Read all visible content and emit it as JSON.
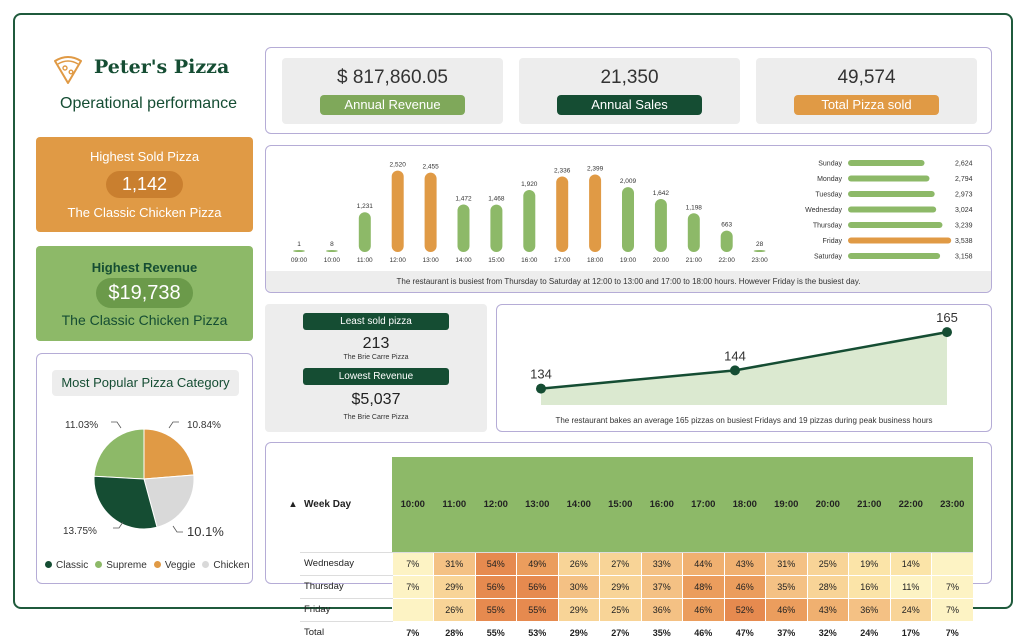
{
  "brand": {
    "name": "Peter's Pizza",
    "subtitle": "Operational performance"
  },
  "highest_sold": {
    "title": "Highest Sold Pizza",
    "value": "1,142",
    "pizza": "The Classic Chicken Pizza"
  },
  "highest_revenue": {
    "title": "Highest Revenue",
    "value": "$19,738",
    "pizza": "The Classic Chicken Pizza"
  },
  "kpis": [
    {
      "value": "$ 817,860.05",
      "label": "Annual Revenue",
      "label_bg": "#7fa85a",
      "label_color": "#ffffff"
    },
    {
      "value": "21,350",
      "label": "Annual Sales",
      "label_bg": "#154d33",
      "label_color": "#ffffff"
    },
    {
      "value": "49,574",
      "label": "Total Pizza sold",
      "label_bg": "#e09a45",
      "label_color": "#ffffff"
    }
  ],
  "colors": {
    "green_dark": "#154d33",
    "green": "#8db968",
    "orange": "#e09a45",
    "grey": "#d9d9d9"
  },
  "hourly_chart": {
    "type": "bar",
    "categories": [
      "09:00",
      "10:00",
      "11:00",
      "12:00",
      "13:00",
      "14:00",
      "15:00",
      "16:00",
      "17:00",
      "18:00",
      "19:00",
      "20:00",
      "21:00",
      "22:00",
      "23:00"
    ],
    "values": [
      1,
      8,
      1231,
      2520,
      2455,
      1472,
      1468,
      1920,
      2336,
      2399,
      2009,
      1642,
      1198,
      663,
      28
    ],
    "value_labels": [
      "1",
      "8",
      "1,231",
      "2,520",
      "2,455",
      "1,472",
      "1,468",
      "1,920",
      "2,336",
      "2,399",
      "2,009",
      "1,642",
      "1,198",
      "663",
      "28"
    ],
    "highlight": [
      false,
      false,
      false,
      true,
      true,
      false,
      false,
      false,
      true,
      true,
      false,
      false,
      false,
      false,
      false
    ],
    "ylim": [
      0,
      2600
    ]
  },
  "weekday_chart": {
    "type": "bar",
    "categories": [
      "Sunday",
      "Monday",
      "Tuesday",
      "Wednesday",
      "Thursday",
      "Friday",
      "Saturday"
    ],
    "values": [
      2624,
      2794,
      2973,
      3024,
      3239,
      3538,
      3158
    ],
    "value_labels": [
      "2,624",
      "2,794",
      "2,973",
      "3,024",
      "3,239",
      "3,538",
      "3,158"
    ],
    "highlight": [
      false,
      false,
      false,
      false,
      false,
      true,
      false
    ],
    "xlim": [
      0,
      3600
    ]
  },
  "bar_note": "The restaurant is busiest from Thursday to Saturday at 12:00 to 13:00 and 17:00 to 18:00 hours. However Friday is the busiest day.",
  "least_sold": {
    "label": "Least sold pizza",
    "value": "213",
    "pizza": "The Brie Carre Pizza"
  },
  "lowest_revenue": {
    "label": "Lowest Revenue",
    "value": "$5,037",
    "pizza": "The Brie Carre Pizza"
  },
  "line_chart": {
    "type": "area",
    "values": [
      134,
      144,
      165
    ],
    "value_labels": [
      "134",
      "144",
      "165"
    ],
    "ylim": [
      125,
      170
    ]
  },
  "line_note": "The restaurant bakes an average 165 pizzas on busiest Fridays and 19 pizzas during peak business hours",
  "pie": {
    "title": "Most Popular Pizza Category",
    "slices": [
      {
        "name": "Classic",
        "value": 13.75,
        "label": "13.75%",
        "color": "#154d33"
      },
      {
        "name": "Supreme",
        "value": 11.03,
        "label": "11.03%",
        "color": "#8db968"
      },
      {
        "name": "Veggie",
        "value": 10.84,
        "label": "10.84%",
        "color": "#e09a45"
      },
      {
        "name": "Chicken",
        "value": 10.1,
        "label": "10.1%",
        "color": "#d9d9d9"
      }
    ]
  },
  "heat_table": {
    "header": "Week Day",
    "hours": [
      "10:00",
      "11:00",
      "12:00",
      "13:00",
      "14:00",
      "15:00",
      "16:00",
      "17:00",
      "18:00",
      "19:00",
      "20:00",
      "21:00",
      "22:00",
      "23:00"
    ],
    "rows": [
      {
        "day": "Wednesday",
        "cells": [
          "7%",
          "31%",
          "54%",
          "49%",
          "26%",
          "27%",
          "33%",
          "44%",
          "43%",
          "31%",
          "25%",
          "19%",
          "14%",
          ""
        ]
      },
      {
        "day": "Thursday",
        "cells": [
          "7%",
          "29%",
          "56%",
          "56%",
          "30%",
          "29%",
          "37%",
          "48%",
          "46%",
          "35%",
          "28%",
          "16%",
          "11%",
          "7%"
        ]
      },
      {
        "day": "Friday",
        "cells": [
          "",
          "26%",
          "55%",
          "55%",
          "29%",
          "25%",
          "36%",
          "46%",
          "52%",
          "46%",
          "43%",
          "36%",
          "24%",
          "7%"
        ]
      }
    ],
    "total": {
      "label": "Total",
      "cells": [
        "7%",
        "28%",
        "55%",
        "53%",
        "29%",
        "27%",
        "35%",
        "46%",
        "47%",
        "37%",
        "32%",
        "24%",
        "17%",
        "7%"
      ]
    }
  }
}
